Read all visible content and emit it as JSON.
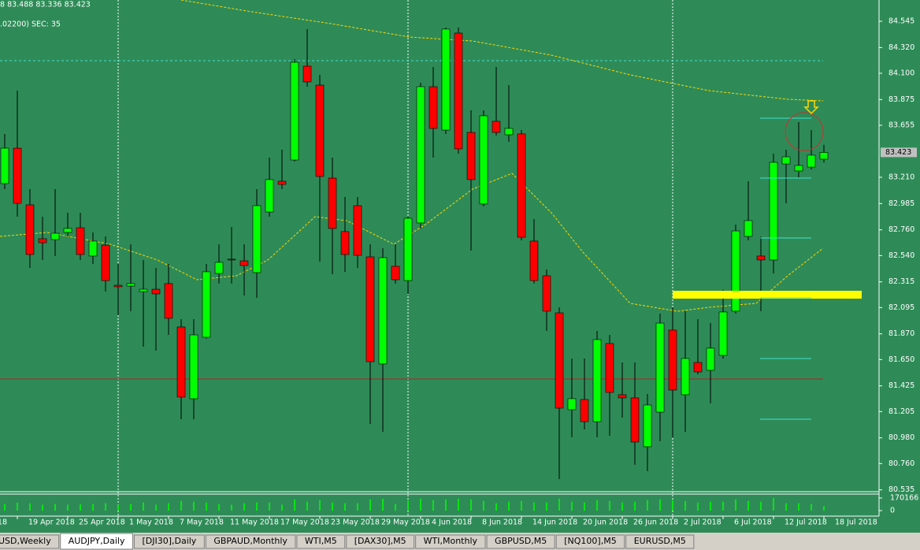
{
  "header": {
    "ohlc_caption": "8 83.488 83.336 83.423",
    "indicator_caption": ".02200)  SEC: 35"
  },
  "chart_data": {
    "type": "candlestick",
    "up_color": "#00ff00",
    "down_color": "#ff0000",
    "x_label_clipped": "18",
    "categories": [
      null,
      "19 Apr 2018",
      null,
      null,
      null,
      "25 Apr 2018",
      null,
      null,
      null,
      "1 May 2018",
      null,
      null,
      null,
      "7 May 2018",
      null,
      null,
      null,
      "11 May 2018",
      null,
      null,
      null,
      "17 May 2018",
      null,
      null,
      null,
      "23 May 2018",
      null,
      null,
      null,
      "29 May 2018",
      null,
      null,
      null,
      "4 Jun 2018",
      null,
      null,
      null,
      "8 Jun 2018",
      null,
      null,
      null,
      "14 Jun 2018",
      null,
      null,
      null,
      "20 Jun 2018",
      null,
      null,
      null,
      "26 Jun 2018",
      null,
      null,
      null,
      "2 Jul 2018",
      null,
      null,
      null,
      "6 Jul 2018",
      null,
      null,
      null,
      "12 Jul 2018",
      null,
      null,
      null,
      "18 Jul 2018"
    ],
    "open": [
      83.156,
      83.459,
      82.974,
      82.684,
      82.677,
      82.738,
      82.778,
      82.536,
      82.63,
      82.286,
      82.279,
      82.232,
      82.252,
      82.3,
      81.929,
      81.315,
      81.841,
      82.387,
      82.509,
      82.495,
      82.394,
      82.913,
      83.176,
      83.358,
      84.161,
      83.999,
      83.203,
      82.745,
      82.967,
      82.529,
      81.612,
      82.448,
      82.326,
      82.819,
      83.985,
      83.614,
      84.444,
      83.594,
      82.981,
      83.689,
      83.574,
      83.581,
      82.664,
      82.367,
      82.05,
      81.221,
      81.308,
      81.119,
      81.787,
      81.349,
      81.322,
      80.904,
      81.2,
      81.902,
      81.349,
      81.625,
      81.558,
      81.686,
      82.064,
      82.704,
      82.536,
      82.502,
      83.324,
      83.264,
      83.297,
      83.365
    ],
    "high": [
      83.581,
      83.952,
      83.109,
      82.873,
      83.109,
      82.906,
      82.906,
      82.738,
      82.704,
      82.468,
      82.637,
      82.502,
      82.434,
      82.468,
      81.996,
      81.996,
      82.468,
      82.637,
      82.785,
      82.637,
      83.109,
      83.378,
      83.446,
      84.221,
      84.478,
      84.086,
      83.378,
      83.041,
      83.041,
      82.637,
      82.603,
      82.637,
      82.873,
      84.019,
      84.154,
      84.491,
      84.491,
      83.783,
      83.783,
      84.154,
      83.999,
      83.614,
      82.852,
      82.421,
      82.097,
      81.659,
      81.659,
      81.895,
      81.861,
      81.625,
      81.625,
      81.355,
      82.043,
      82.097,
      82.064,
      81.996,
      81.962,
      82.246,
      82.805,
      83.176,
      82.704,
      83.412,
      83.446,
      83.682,
      83.614,
      83.488
    ],
    "low": [
      83.109,
      82.873,
      82.434,
      82.502,
      82.536,
      82.704,
      82.502,
      82.468,
      82.232,
      82.03,
      82.064,
      81.76,
      81.726,
      81.861,
      81.14,
      81.14,
      81.828,
      82.3,
      82.3,
      82.198,
      82.178,
      82.873,
      83.109,
      83.345,
      83.985,
      82.488,
      82.38,
      82.401,
      82.434,
      81.099,
      81.032,
      82.3,
      82.212,
      82.772,
      83.378,
      83.581,
      83.412,
      82.583,
      82.96,
      83.567,
      83.513,
      82.67,
      82.3,
      81.895,
      80.627,
      80.985,
      81.052,
      80.985,
      80.998,
      81.153,
      80.749,
      80.695,
      80.951,
      80.985,
      81.032,
      81.524,
      81.275,
      81.659,
      82.043,
      82.67,
      82.064,
      82.387,
      82.987,
      83.21,
      83.277,
      83.336
    ],
    "close": [
      83.459,
      82.987,
      82.549,
      82.65,
      82.731,
      82.772,
      82.549,
      82.664,
      82.326,
      82.273,
      82.3,
      82.252,
      82.212,
      82.003,
      81.329,
      81.861,
      82.401,
      82.482,
      82.502,
      82.455,
      82.967,
      83.19,
      83.149,
      84.194,
      84.026,
      83.217,
      82.772,
      82.549,
      82.542,
      81.632,
      82.522,
      82.333,
      82.859,
      83.985,
      83.628,
      84.478,
      83.453,
      83.19,
      83.736,
      83.594,
      83.628,
      82.697,
      82.326,
      82.064,
      81.234,
      81.315,
      81.119,
      81.821,
      81.369,
      81.322,
      80.944,
      81.261,
      81.962,
      81.389,
      81.659,
      81.544,
      81.747,
      82.057,
      82.751,
      82.839,
      82.502,
      83.338,
      83.385,
      83.311,
      83.399,
      83.423
    ],
    "ylim": [
      80.526,
      84.727
    ],
    "yticks": [
      84.545,
      {
        "value": 84.32,
        "label": "84.320"
      },
      {
        "value": 84.1,
        "label": "84.100"
      },
      83.875,
      83.655,
      {
        "value": 83.21,
        "label": "83.210"
      },
      82.985,
      {
        "value": 82.76,
        "label": "82.760"
      },
      {
        "value": 82.54,
        "label": "82.540"
      },
      82.315,
      82.095,
      {
        "value": 81.87,
        "label": "81.870"
      },
      {
        "value": 81.65,
        "label": "81.650"
      },
      81.425,
      81.205,
      {
        "value": 80.98,
        "label": "80.980"
      },
      {
        "value": 80.76,
        "label": "80.760"
      },
      80.535
    ],
    "volume": {
      "color": "#00ff00",
      "values": [
        90000,
        110000,
        100000,
        80000,
        90000,
        80000,
        85000,
        90000,
        100000,
        80000,
        90000,
        110000,
        80000,
        100000,
        130000,
        120000,
        110000,
        90000,
        80000,
        100000,
        110000,
        110000,
        80000,
        150000,
        120000,
        140000,
        110000,
        100000,
        100000,
        150000,
        160000,
        90000,
        140000,
        160000,
        140000,
        150000,
        160000,
        150000,
        130000,
        100000,
        120000,
        130000,
        110000,
        110000,
        160000,
        120000,
        110000,
        140000,
        130000,
        110000,
        120000,
        140000,
        150000,
        140000,
        130000,
        110000,
        120000,
        120000,
        150000,
        130000,
        120000,
        170000,
        100000,
        100000,
        90000,
        60000
      ],
      "ylim": [
        0,
        170166
      ],
      "yticks": [
        170166,
        0
      ]
    }
  },
  "tabs": [
    "USD,Weekly",
    "AUDJPY,Daily",
    "[DJI30],Daily",
    "GBPAUD,Monthly",
    "WTI,M5",
    "[DAX30],M5",
    "WTI,Monthly",
    "GBPUSD,M5",
    "[NQ100],M5",
    "EURUSD,M5"
  ],
  "active_tab": 1
}
